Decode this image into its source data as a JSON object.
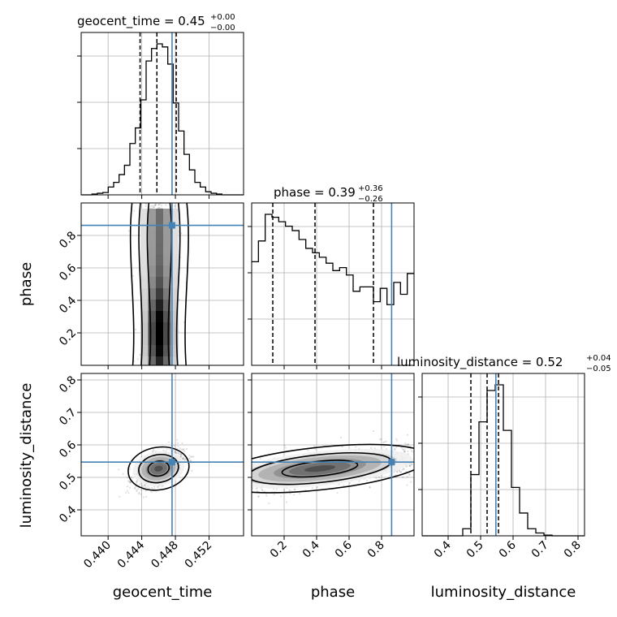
{
  "chart_data": {
    "type": "corner",
    "parameters": [
      "geocent_time",
      "phase",
      "luminosity_distance"
    ],
    "truths": {
      "geocent_time": 0.4476,
      "phase": 0.862,
      "luminosity_distance": 0.547
    },
    "truth_color": "#4682b4",
    "titles": [
      {
        "param": "geocent_time",
        "text": "geocent_time = 0.45",
        "plus": "+0.00",
        "minus": "−0.00"
      },
      {
        "param": "phase",
        "text": "phase = 0.39",
        "plus": "+0.36",
        "minus": "−0.26"
      },
      {
        "param": "luminosity_distance",
        "text": "luminosity_distance = 0.52",
        "plus": "+0.04",
        "minus": "−0.05"
      }
    ],
    "axis_labels": {
      "geocent_time": "geocent_time",
      "phase": "phase",
      "luminosity_distance": "luminosity_distance"
    },
    "ranges": {
      "geocent_time": [
        0.4368,
        0.4561
      ],
      "phase": [
        0.0,
        1.0
      ],
      "luminosity_distance": [
        0.32,
        0.82
      ]
    },
    "ticks": {
      "geocent_time": [
        "0.440",
        "0.444",
        "0.448",
        "0.452"
      ],
      "phase": [
        "0.2",
        "0.4",
        "0.6",
        "0.8"
      ],
      "luminosity_distance": [
        "0.4",
        "0.5",
        "0.6",
        "0.7",
        "0.8"
      ]
    },
    "quantiles": {
      "geocent_time": [
        0.4438,
        0.4458,
        0.4481
      ],
      "phase": [
        0.13,
        0.39,
        0.75
      ],
      "luminosity_distance": [
        0.47,
        0.52,
        0.555
      ]
    },
    "histograms": {
      "geocent_time": {
        "edges": [
          0.4368,
          0.4561
        ],
        "counts": [
          0,
          0,
          0.5,
          1,
          1.5,
          5,
          8,
          13,
          19,
          33,
          43,
          61,
          86,
          94,
          97,
          95,
          84,
          59,
          41,
          26,
          16,
          8,
          5,
          2,
          1,
          0.5,
          0,
          0,
          0,
          0
        ]
      },
      "phase": {
        "edges": [
          0.0,
          1.0
        ],
        "counts": [
          70,
          84,
          102,
          100,
          97,
          94,
          91,
          85,
          79,
          76,
          73,
          69,
          64,
          66,
          61,
          50,
          53,
          53,
          43,
          52,
          41,
          56,
          48,
          62
        ]
      },
      "luminosity_distance": {
        "edges": [
          0.32,
          0.82
        ],
        "counts": [
          0,
          0,
          0,
          0,
          0,
          5,
          43,
          80,
          102,
          106,
          74,
          34,
          16,
          5,
          2,
          0.5,
          0,
          0,
          0,
          0
        ]
      }
    },
    "grid": true
  }
}
